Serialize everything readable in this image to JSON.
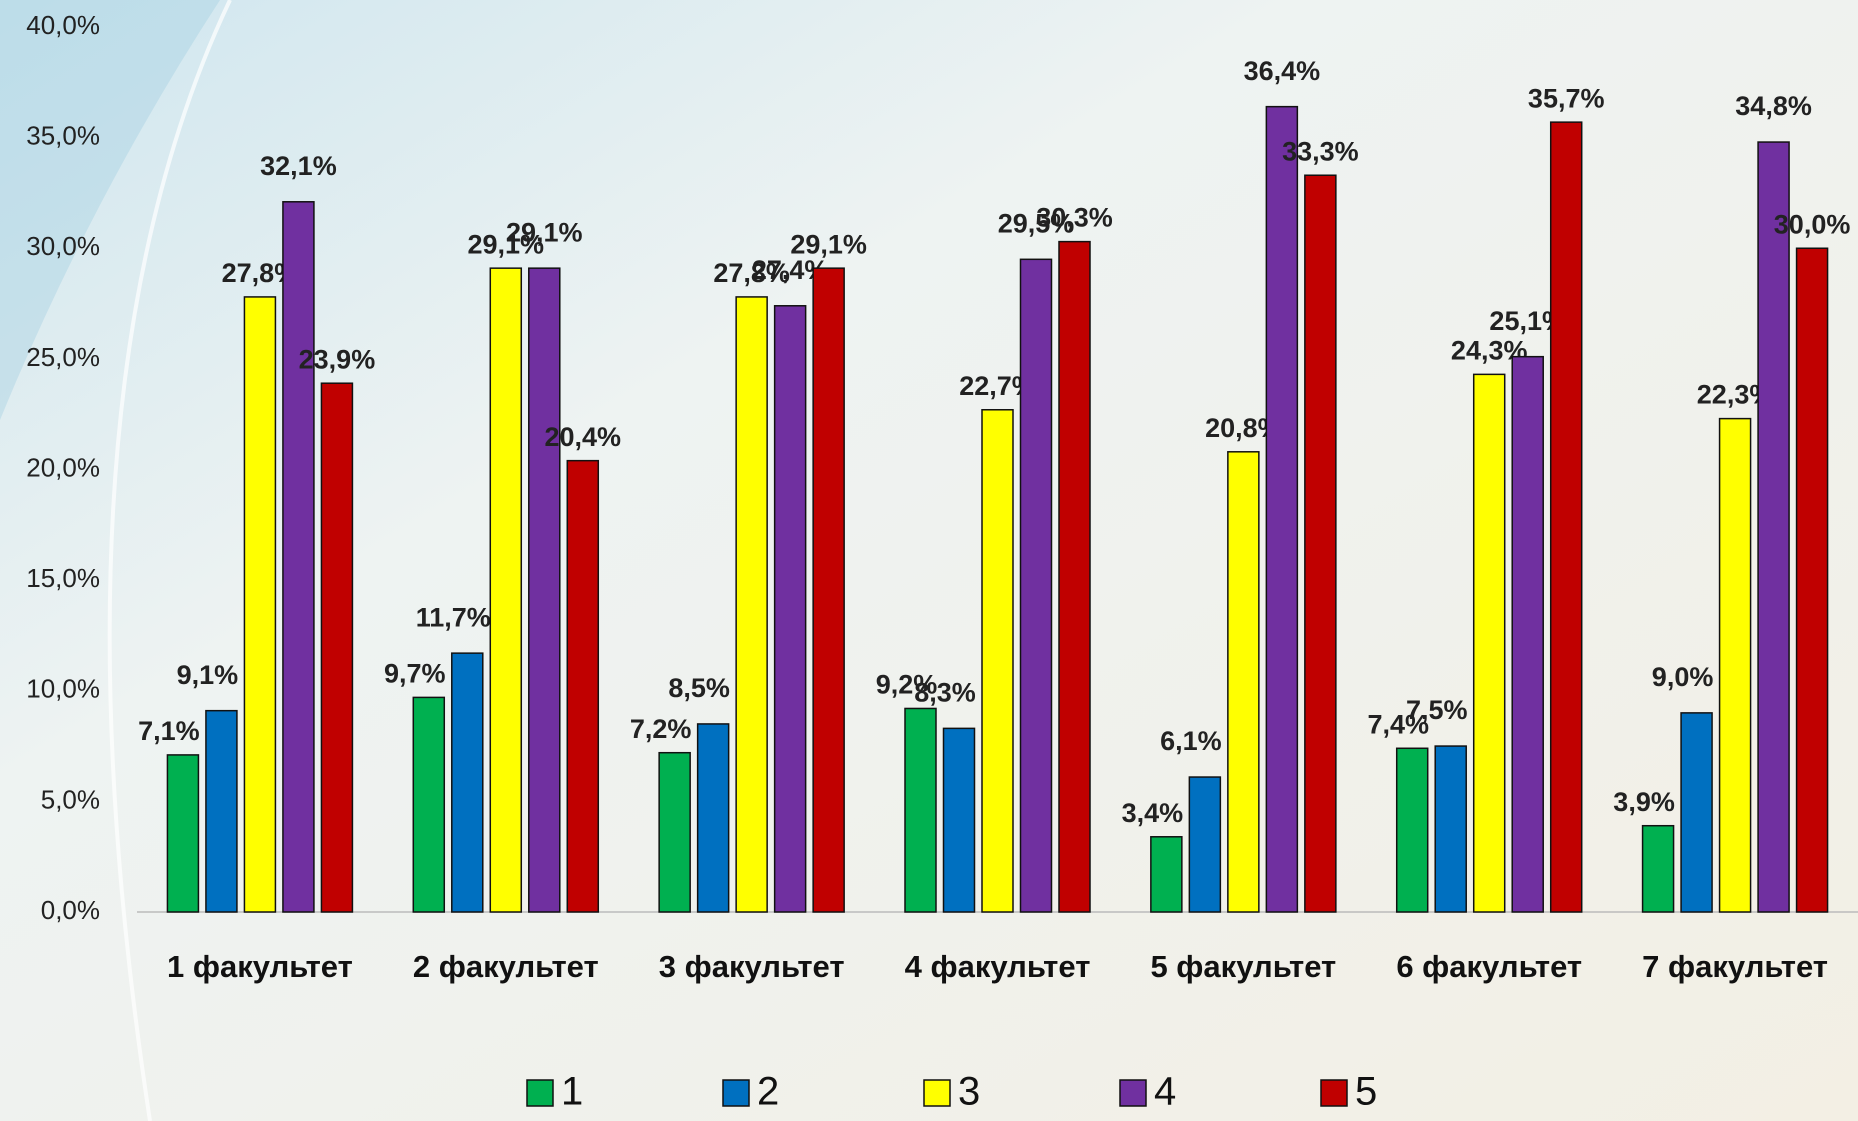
{
  "chart_data": {
    "type": "bar",
    "categories": [
      "1 факультет",
      "2 факультет",
      "3 факультет",
      "4 факультет",
      "5 факультет",
      "6 факультет",
      "7 факультет"
    ],
    "series": [
      {
        "name": "1",
        "color": "#00b050",
        "values": [
          7.1,
          9.7,
          7.2,
          9.2,
          3.4,
          7.4,
          3.9
        ],
        "value_labels": [
          "7,1%",
          "9,7%",
          "7,2%",
          "9,2%",
          "3,4%",
          "7,4%",
          "3,9%"
        ]
      },
      {
        "name": "2",
        "color": "#0070c0",
        "values": [
          9.1,
          11.7,
          8.5,
          8.3,
          6.1,
          7.5,
          9.0
        ],
        "value_labels": [
          "9,1%",
          "11,7%",
          "8,5%",
          "8,3%",
          "6,1%",
          "7,5%",
          "9,0%"
        ]
      },
      {
        "name": "3",
        "color": "#ffff00",
        "values": [
          27.8,
          29.1,
          27.8,
          22.7,
          20.8,
          24.3,
          22.3
        ],
        "value_labels": [
          "27,8%",
          "29,1%",
          "27,8%",
          "22,7%",
          "20,8%",
          "24,3%",
          "22,3%"
        ]
      },
      {
        "name": "4",
        "color": "#7030a0",
        "values": [
          32.1,
          29.1,
          27.4,
          29.5,
          36.4,
          25.1,
          34.8
        ],
        "value_labels": [
          "32,1%",
          "29,1%",
          "27,4%",
          "29,5%",
          "36,4%",
          "25,1%",
          "34,8%"
        ]
      },
      {
        "name": "5",
        "color": "#c00000",
        "values": [
          23.9,
          20.4,
          29.1,
          30.3,
          33.3,
          35.7,
          30.0
        ],
        "value_labels": [
          "23,9%",
          "20,4%",
          "29,1%",
          "30,3%",
          "33,3%",
          "35,7%",
          "30,0%"
        ]
      }
    ],
    "ylim": [
      0,
      40
    ],
    "yticks": [
      {
        "value": 0,
        "label": "0,0%"
      },
      {
        "value": 5,
        "label": "5,0%"
      },
      {
        "value": 10,
        "label": "10,0%"
      },
      {
        "value": 15,
        "label": "15,0%"
      },
      {
        "value": 20,
        "label": "20,0%"
      },
      {
        "value": 25,
        "label": "25,0%"
      },
      {
        "value": 30,
        "label": "30,0%"
      },
      {
        "value": 35,
        "label": "35,0%"
      },
      {
        "value": 40,
        "label": "40,0%"
      }
    ],
    "legend": "bottom"
  }
}
